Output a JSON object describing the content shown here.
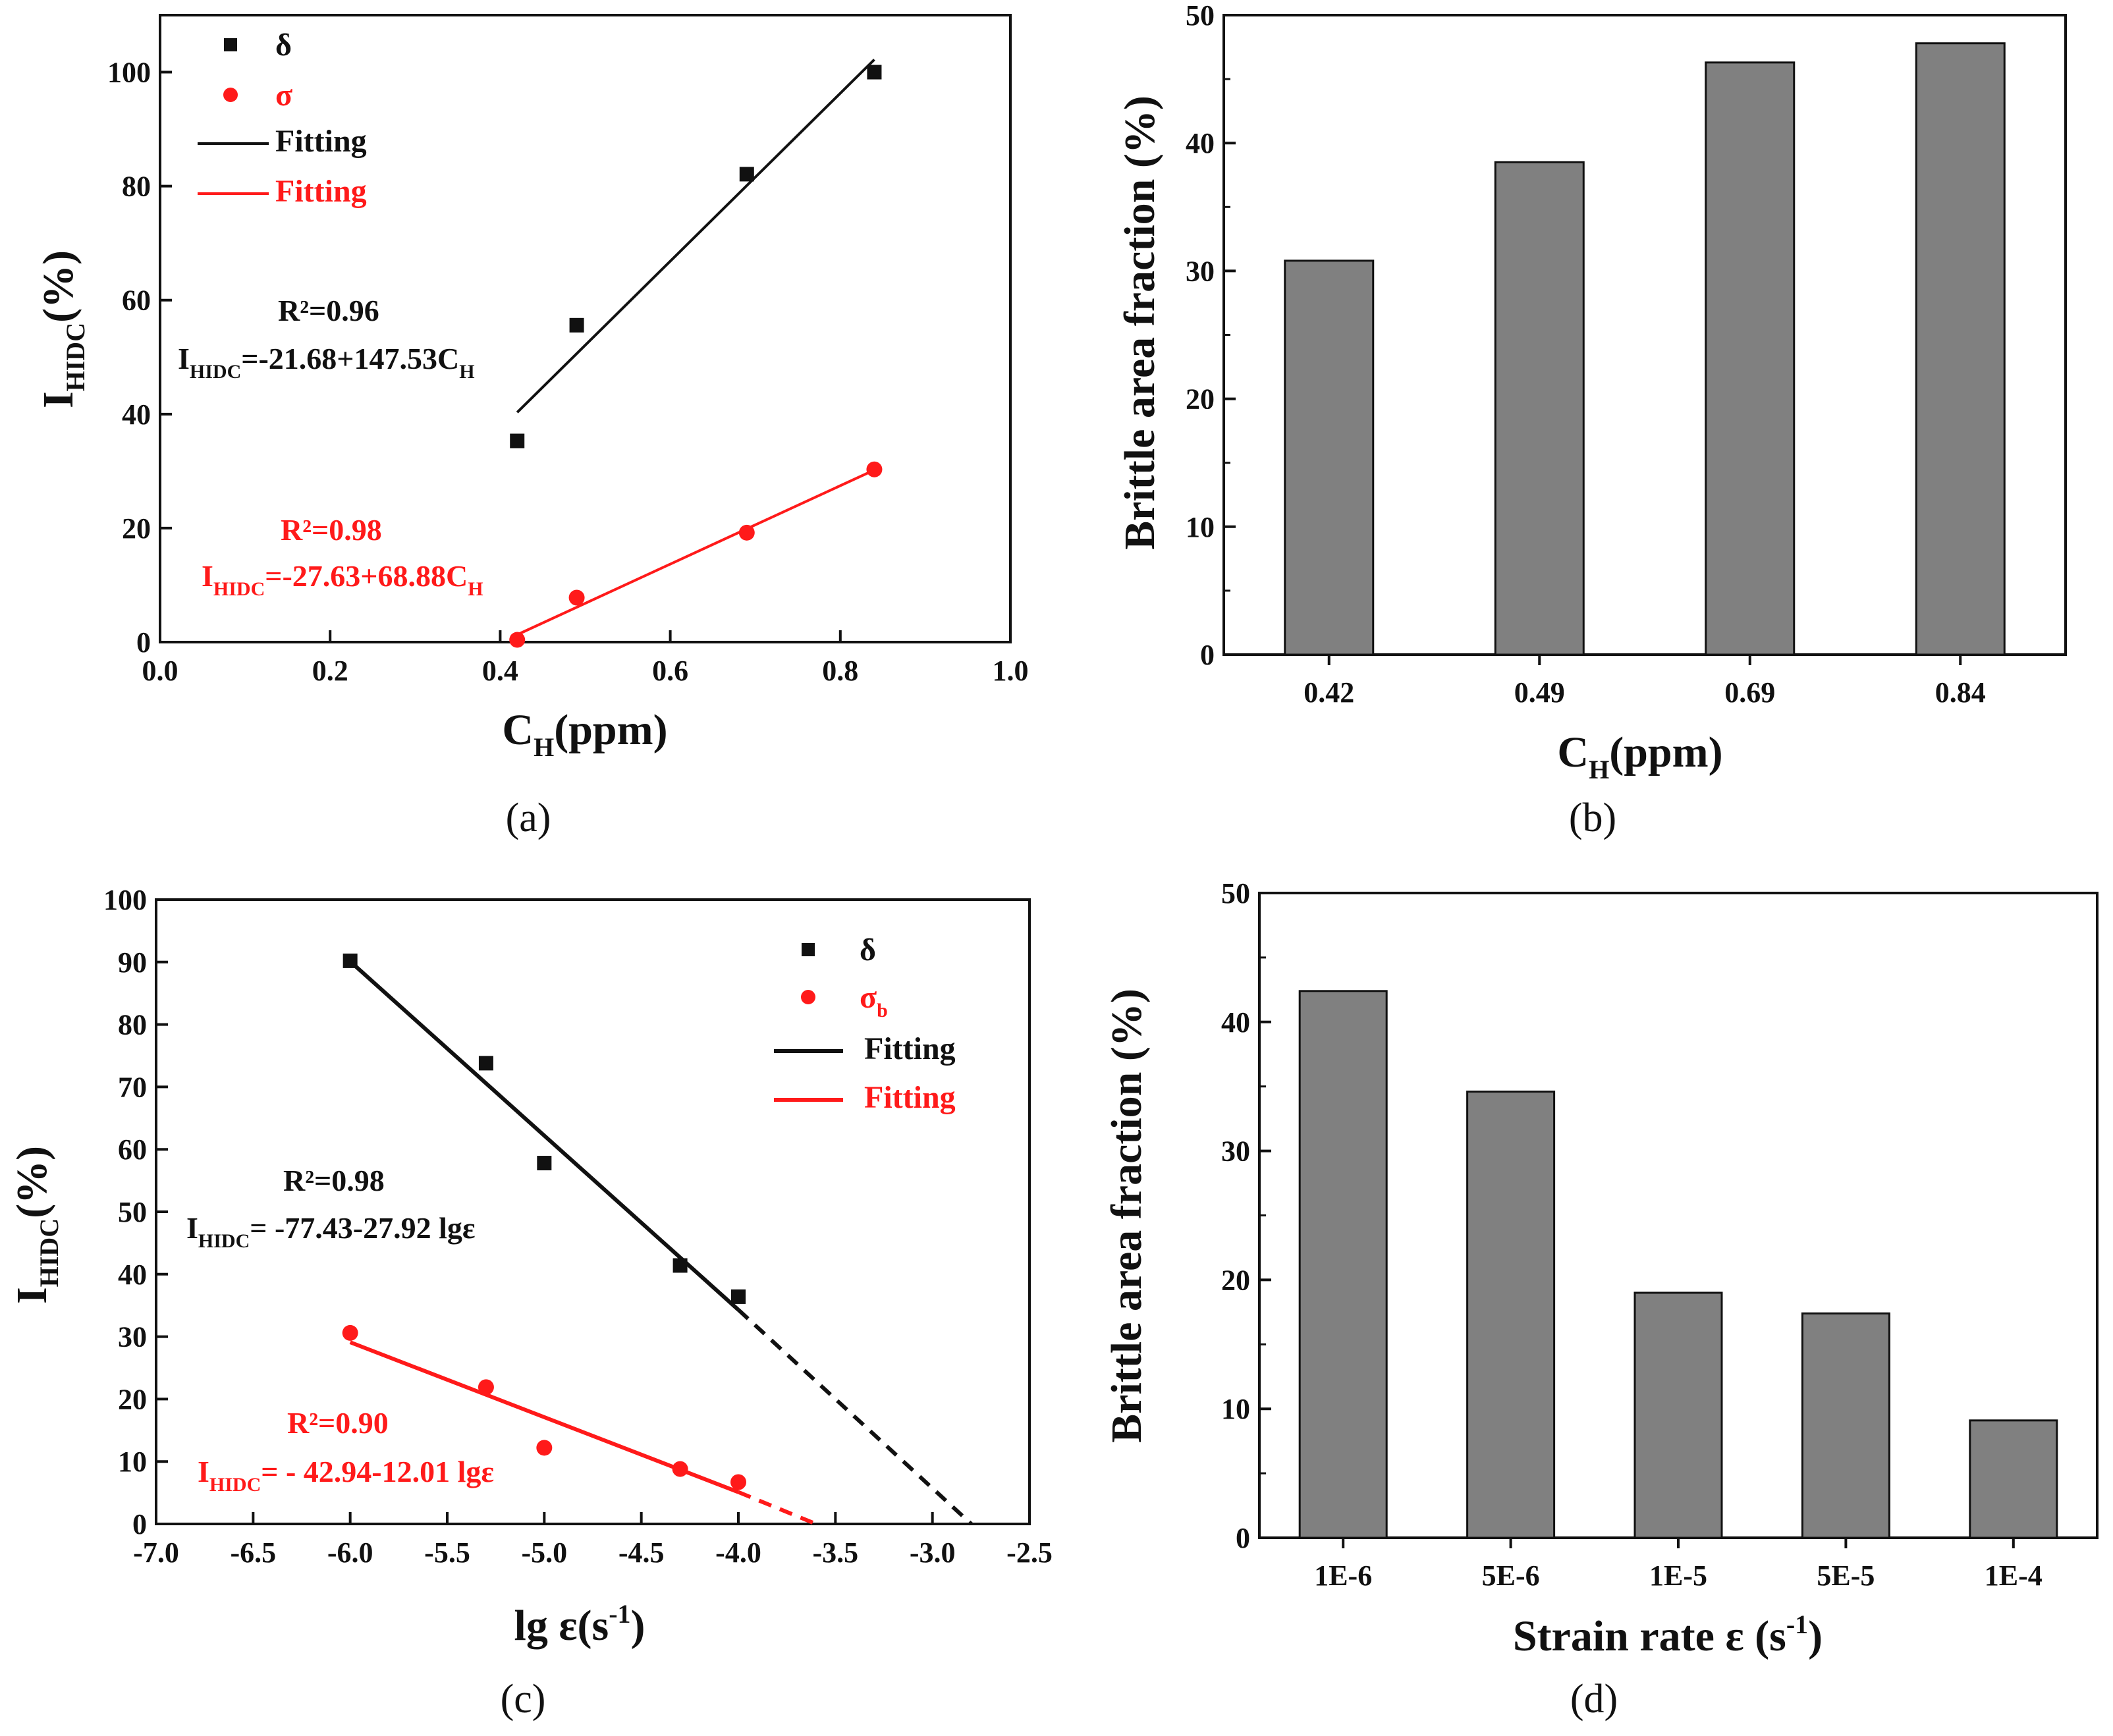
{
  "colors": {
    "black": "#111111",
    "red": "#ff1a1a",
    "bar": "#808080"
  },
  "chart_data": [
    {
      "id": "a",
      "type": "scatter",
      "caption": "(a)",
      "xlabel_main": "C",
      "xlabel_sub": "H",
      "xlabel_tail": "(ppm)",
      "ylabel_main": "I",
      "ylabel_sub": "HIDC",
      "ylabel_tail": "(%)",
      "xlim": [
        0.0,
        1.0
      ],
      "ylim": [
        0,
        110
      ],
      "xticks": [
        0.0,
        0.2,
        0.4,
        0.6,
        0.8,
        1.0
      ],
      "xtick_labels": [
        "0.0",
        "0.2",
        "0.4",
        "0.6",
        "0.8",
        "1.0"
      ],
      "yticks": [
        0,
        20,
        40,
        60,
        80,
        100
      ],
      "ytick_labels": [
        "0",
        "20",
        "40",
        "60",
        "80",
        "100"
      ],
      "series": [
        {
          "name": "δ",
          "color": "#111111",
          "marker": "square",
          "x": [
            0.42,
            0.49,
            0.69,
            0.84
          ],
          "y": [
            35.3,
            55.6,
            82.1,
            100
          ],
          "fit": {
            "x": [
              0.42,
              0.84
            ],
            "y": [
              40.3,
              102.2
            ]
          }
        },
        {
          "name": "σ",
          "color": "#ff1a1a",
          "marker": "circle",
          "x": [
            0.42,
            0.49,
            0.69,
            0.84
          ],
          "y": [
            0.4,
            7.8,
            19.2,
            30.3
          ],
          "fit": {
            "x": [
              0.42,
              0.84
            ],
            "y": [
              1.3,
              30.2
            ]
          }
        }
      ],
      "legend": [
        {
          "label": "δ",
          "kind": "square",
          "color": "#111111"
        },
        {
          "label": "σ",
          "kind": "circle",
          "color": "#ff1a1a"
        },
        {
          "label": "Fitting",
          "kind": "line",
          "color": "#111111"
        },
        {
          "label": "Fitting",
          "kind": "line",
          "color": "#ff1a1a"
        }
      ],
      "annotations": [
        {
          "color": "#111111",
          "r2": "R²=0.96",
          "eq_main": "I",
          "eq_sub": "HIDC",
          "eq_body": "=-21.68+147.53C",
          "eq_sub2": "H",
          "eq_tail": ""
        },
        {
          "color": "#ff1a1a",
          "r2": "R²=0.98",
          "eq_main": "I",
          "eq_sub": "HIDC",
          "eq_body": "=-27.63+68.88C",
          "eq_sub2": "H",
          "eq_tail": ""
        }
      ]
    },
    {
      "id": "b",
      "type": "bar",
      "caption": "(b)",
      "xlabel_main": "C",
      "xlabel_sub": "H",
      "xlabel_tail": "(ppm)",
      "ylabel": "Brittle area fraction (%)",
      "categories": [
        "0.42",
        "0.49",
        "0.69",
        "0.84"
      ],
      "values": [
        30.8,
        38.5,
        46.3,
        47.8
      ],
      "ylim": [
        0,
        50
      ],
      "yticks": [
        0,
        10,
        20,
        30,
        40,
        50
      ],
      "ytick_labels": [
        "0",
        "10",
        "20",
        "30",
        "40",
        "50"
      ]
    },
    {
      "id": "c",
      "type": "scatter",
      "caption": "(c)",
      "xlabel_main": "lg ε(s",
      "xlabel_sup": "-1",
      "xlabel_tail": ")",
      "ylabel_main": "I",
      "ylabel_sub": "HIDC",
      "ylabel_tail": "(%)",
      "xlim": [
        -7.0,
        -2.5
      ],
      "ylim": [
        0,
        100
      ],
      "xticks": [
        -7.0,
        -6.5,
        -6.0,
        -5.5,
        -5.0,
        -4.5,
        -4.0,
        -3.5,
        -3.0,
        -2.5
      ],
      "xtick_labels": [
        "-7.0",
        "-6.5",
        "-6.0",
        "-5.5",
        "-5.0",
        "-4.5",
        "-4.0",
        "-3.5",
        "-3.0",
        "-2.5"
      ],
      "yticks": [
        0,
        10,
        20,
        30,
        40,
        50,
        60,
        70,
        80,
        90,
        100
      ],
      "ytick_labels": [
        "0",
        "10",
        "20",
        "30",
        "40",
        "50",
        "60",
        "70",
        "80",
        "90",
        "100"
      ],
      "series": [
        {
          "name": "δ",
          "color": "#111111",
          "marker": "square",
          "x": [
            -6.0,
            -5.3,
            -5.0,
            -4.3,
            -4.0
          ],
          "y": [
            90.2,
            73.8,
            57.8,
            41.4,
            36.4
          ],
          "fit": {
            "x": [
              -6.0,
              -4.0
            ],
            "y": [
              90.1,
              34.3
            ]
          },
          "extrap": {
            "x": [
              -4.0,
              -2.8
            ],
            "y": [
              34.3,
              0
            ]
          }
        },
        {
          "name": "σb",
          "color": "#ff1a1a",
          "marker": "circle",
          "x": [
            -6.0,
            -5.3,
            -5.0,
            -4.3,
            -4.0
          ],
          "y": [
            30.6,
            21.9,
            12.2,
            8.8,
            6.7
          ],
          "fit": {
            "x": [
              -6.0,
              -4.0
            ],
            "y": [
              29.1,
              5.1
            ]
          },
          "extrap": {
            "x": [
              -4.0,
              -3.6
            ],
            "y": [
              5.1,
              0
            ]
          }
        }
      ],
      "legend": [
        {
          "label": "δ",
          "sub": "",
          "kind": "square",
          "color": "#111111"
        },
        {
          "label": "σ",
          "sub": "b",
          "kind": "circle",
          "color": "#ff1a1a"
        },
        {
          "label": "Fitting",
          "sub": "",
          "kind": "line",
          "color": "#111111"
        },
        {
          "label": "Fitting",
          "sub": "",
          "kind": "line",
          "color": "#ff1a1a"
        }
      ],
      "annotations": [
        {
          "color": "#111111",
          "r2": "R²=0.98",
          "eq_main": "I",
          "eq_sub": "HIDC",
          "eq_body": "= -77.43-27.92 lgε",
          "eq_sub2": "",
          "eq_tail": ""
        },
        {
          "color": "#ff1a1a",
          "r2": "R²=0.90",
          "eq_main": "I",
          "eq_sub": "HIDC",
          "eq_body": "= - 42.94-12.01 lgε",
          "eq_sub2": "",
          "eq_tail": ""
        }
      ]
    },
    {
      "id": "d",
      "type": "bar",
      "caption": "(d)",
      "xlabel_main": "Strain rate ε (s",
      "xlabel_sup": "-1",
      "xlabel_tail": ")",
      "ylabel": "Brittle area fraction  (%)",
      "categories": [
        "1E-6",
        "5E-6",
        "1E-5",
        "5E-5",
        "1E-4"
      ],
      "values": [
        42.4,
        34.6,
        19.0,
        17.4,
        9.1
      ],
      "ylim": [
        0,
        50
      ],
      "yticks": [
        0,
        10,
        20,
        30,
        40,
        50
      ],
      "ytick_labels": [
        "0",
        "10",
        "20",
        "30",
        "40",
        "50"
      ]
    }
  ]
}
